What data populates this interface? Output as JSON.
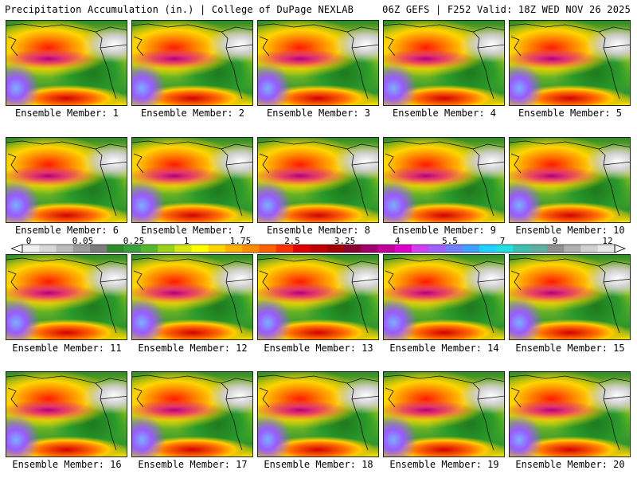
{
  "header": {
    "title_left": "Precipitation Accumulation (in.) | College of DuPage NEXLAB",
    "title_right": "06Z GEFS | F252 Valid: 18Z WED NOV 26 2025"
  },
  "panels": [
    {
      "label": "Ensemble Member: 1"
    },
    {
      "label": "Ensemble Member: 2"
    },
    {
      "label": "Ensemble Member: 3"
    },
    {
      "label": "Ensemble Member: 4"
    },
    {
      "label": "Ensemble Member: 5"
    },
    {
      "label": "Ensemble Member: 6"
    },
    {
      "label": "Ensemble Member: 7"
    },
    {
      "label": "Ensemble Member: 8"
    },
    {
      "label": "Ensemble Member: 9"
    },
    {
      "label": "Ensemble Member: 10"
    },
    {
      "label": "Ensemble Member: 11"
    },
    {
      "label": "Ensemble Member: 12"
    },
    {
      "label": "Ensemble Member: 13"
    },
    {
      "label": "Ensemble Member: 14"
    },
    {
      "label": "Ensemble Member: 15"
    },
    {
      "label": "Ensemble Member: 16"
    },
    {
      "label": "Ensemble Member: 17"
    },
    {
      "label": "Ensemble Member: 18"
    },
    {
      "label": "Ensemble Member: 19"
    },
    {
      "label": "Ensemble Member: 20"
    }
  ],
  "colorbar": {
    "ticks": [
      "0",
      "0.05",
      "0.25",
      "1",
      "1.75",
      "2.5",
      "3.25",
      "4",
      "5.5",
      "7",
      "9",
      "12"
    ],
    "colors": [
      "#f0f0f0",
      "#d8d8d8",
      "#bcbcbc",
      "#9c9c9c",
      "#7c7c7c",
      "#2f8a2f",
      "#3aa03a",
      "#55b82a",
      "#9ad21a",
      "#d6e60e",
      "#ffff00",
      "#ffd700",
      "#ffb000",
      "#ff8c00",
      "#ff6000",
      "#ff3000",
      "#e00000",
      "#c00000",
      "#a00000",
      "#8c0030",
      "#a0006a",
      "#c0009a",
      "#e000c8",
      "#d040f0",
      "#a060ff",
      "#7080ff",
      "#40a0ff",
      "#20d0ff",
      "#20e0e0",
      "#40c0b0",
      "#60b0a0",
      "#909090",
      "#b0b0b0",
      "#d0d0d0",
      "#e8e8e8"
    ]
  }
}
